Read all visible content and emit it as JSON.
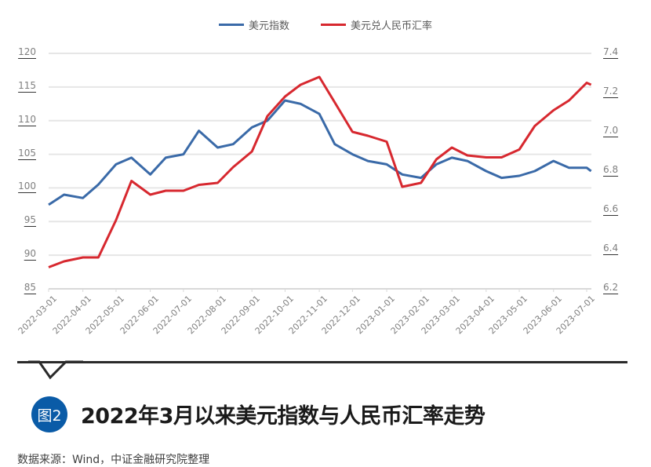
{
  "chart_data": {
    "type": "line",
    "title": "2022年3月以来美元指数与人民币汇率走势",
    "figure_label": "图2",
    "source": "数据来源：Wind，中证金融研究院整理",
    "legend": [
      "美元指数",
      "美元兑人民币汇率"
    ],
    "legend_position": "top",
    "grid": true,
    "x_tick_labels": [
      "2022-03-01",
      "2022-04-01",
      "2022-05-01",
      "2022-06-01",
      "2022-07-01",
      "2022-08-01",
      "2022-09-01",
      "2022-10-01",
      "2022-11-01",
      "2022-12-01",
      "2023-01-01",
      "2023-02-01",
      "2023-03-01",
      "2023-04-01",
      "2023-05-01",
      "2023-06-01",
      "2023-07-01"
    ],
    "left_axis": {
      "ticks": [
        "120",
        "115",
        "110",
        "105",
        "100",
        "95",
        "90",
        "85"
      ],
      "ylim": [
        85,
        120
      ]
    },
    "right_axis": {
      "ticks": [
        "7.4",
        "7.2",
        "7.0",
        "6.8",
        "6.6",
        "6.4",
        "6.2"
      ],
      "ylim": [
        6.2,
        7.4
      ]
    },
    "x": [
      "2022-03-01",
      "2022-03-15",
      "2022-04-01",
      "2022-04-15",
      "2022-05-01",
      "2022-05-15",
      "2022-06-01",
      "2022-06-15",
      "2022-07-01",
      "2022-07-15",
      "2022-08-01",
      "2022-08-15",
      "2022-09-01",
      "2022-09-15",
      "2022-10-01",
      "2022-10-15",
      "2022-11-01",
      "2022-11-15",
      "2022-12-01",
      "2022-12-15",
      "2023-01-01",
      "2023-01-15",
      "2023-02-01",
      "2023-02-15",
      "2023-03-01",
      "2023-03-15",
      "2023-04-01",
      "2023-04-15",
      "2023-05-01",
      "2023-05-15",
      "2023-06-01",
      "2023-06-15",
      "2023-07-01",
      "2023-07-05"
    ],
    "series": [
      {
        "name": "美元指数",
        "axis": "left",
        "color": "#3a6aa8",
        "values": [
          97.5,
          99,
          98.5,
          100.5,
          103.5,
          104.5,
          102,
          104.5,
          105,
          108.5,
          106,
          106.5,
          109,
          110,
          113,
          112.5,
          111,
          106.5,
          105,
          104,
          103.5,
          102,
          101.5,
          103.5,
          104.5,
          104,
          102.5,
          101.5,
          101.8,
          102.5,
          104,
          103,
          103,
          102.5
        ]
      },
      {
        "name": "美元兑人民币汇率",
        "axis": "right",
        "color": "#d7282f",
        "values": [
          6.31,
          6.34,
          6.36,
          6.36,
          6.55,
          6.75,
          6.68,
          6.7,
          6.7,
          6.73,
          6.74,
          6.82,
          6.9,
          7.08,
          7.18,
          7.24,
          7.28,
          7.15,
          7.0,
          6.98,
          6.95,
          6.72,
          6.74,
          6.86,
          6.92,
          6.88,
          6.87,
          6.87,
          6.91,
          7.03,
          7.11,
          7.16,
          7.25,
          7.24
        ]
      }
    ]
  }
}
